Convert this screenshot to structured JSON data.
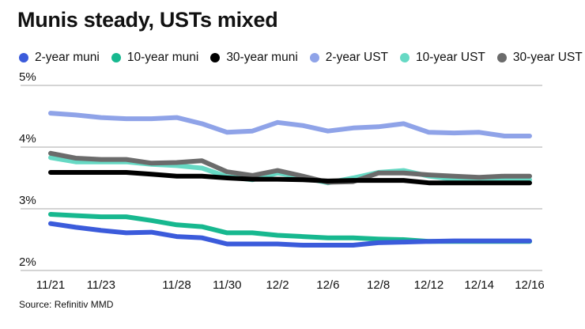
{
  "title": "Munis steady, USTs mixed",
  "source": "Source: Refinitiv MMD",
  "chart_data": {
    "type": "line",
    "title": "Munis steady, USTs mixed",
    "xlabel": "",
    "ylabel": "",
    "ylim": [
      2,
      5
    ],
    "yticks": [
      {
        "value": 5,
        "label": "5%"
      },
      {
        "value": 4,
        "label": "4%"
      },
      {
        "value": 3,
        "label": "3%"
      },
      {
        "value": 2,
        "label": "2%"
      }
    ],
    "x_count": 20,
    "xticks": [
      {
        "index": 0,
        "label": "11/21"
      },
      {
        "index": 2,
        "label": "11/23"
      },
      {
        "index": 5,
        "label": "11/28"
      },
      {
        "index": 7,
        "label": "11/30"
      },
      {
        "index": 9,
        "label": "12/2"
      },
      {
        "index": 11,
        "label": "12/6"
      },
      {
        "index": 13,
        "label": "12/8"
      },
      {
        "index": 15,
        "label": "12/12"
      },
      {
        "index": 17,
        "label": "12/14"
      },
      {
        "index": 19,
        "label": "12/16"
      }
    ],
    "series": [
      {
        "name": "2-year UST",
        "color": "#8fa3e8",
        "values": [
          4.55,
          4.52,
          4.48,
          4.46,
          4.46,
          4.48,
          4.38,
          4.24,
          4.26,
          4.4,
          4.35,
          4.26,
          4.31,
          4.33,
          4.38,
          4.24,
          4.23,
          4.24,
          4.18,
          4.18
        ]
      },
      {
        "name": "10-year UST",
        "color": "#66d9c4",
        "values": [
          3.83,
          3.76,
          3.76,
          3.76,
          3.72,
          3.7,
          3.66,
          3.52,
          3.47,
          3.58,
          3.51,
          3.42,
          3.5,
          3.59,
          3.62,
          3.53,
          3.48,
          3.47,
          3.47,
          3.47
        ]
      },
      {
        "name": "30-year UST",
        "color": "#6b6b6b",
        "values": [
          3.9,
          3.82,
          3.8,
          3.8,
          3.74,
          3.75,
          3.78,
          3.6,
          3.54,
          3.62,
          3.53,
          3.43,
          3.44,
          3.58,
          3.58,
          3.55,
          3.53,
          3.51,
          3.53,
          3.53
        ]
      },
      {
        "name": "30-year muni",
        "color": "#000000",
        "values": [
          3.59,
          3.59,
          3.59,
          3.59,
          3.56,
          3.53,
          3.53,
          3.5,
          3.48,
          3.48,
          3.47,
          3.45,
          3.46,
          3.46,
          3.46,
          3.42,
          3.42,
          3.42,
          3.42,
          3.42
        ]
      },
      {
        "name": "10-year muni",
        "color": "#17b88f",
        "values": [
          2.91,
          2.89,
          2.87,
          2.87,
          2.81,
          2.74,
          2.71,
          2.61,
          2.61,
          2.57,
          2.55,
          2.53,
          2.53,
          2.51,
          2.5,
          2.47,
          2.47,
          2.47,
          2.47,
          2.47
        ]
      },
      {
        "name": "2-year muni",
        "color": "#3b5bdb",
        "values": [
          2.76,
          2.7,
          2.65,
          2.61,
          2.62,
          2.55,
          2.53,
          2.43,
          2.43,
          2.43,
          2.41,
          2.41,
          2.41,
          2.45,
          2.46,
          2.47,
          2.48,
          2.48,
          2.48,
          2.48
        ]
      }
    ],
    "legend": [
      {
        "name": "2-year muni",
        "color": "#3b5bdb"
      },
      {
        "name": "10-year muni",
        "color": "#17b88f"
      },
      {
        "name": "30-year muni",
        "color": "#000000"
      },
      {
        "name": "2-year UST",
        "color": "#8fa3e8"
      },
      {
        "name": "10-year UST",
        "color": "#66d9c4"
      },
      {
        "name": "30-year UST",
        "color": "#6b6b6b"
      }
    ],
    "legend_position": "top",
    "grid": true
  }
}
